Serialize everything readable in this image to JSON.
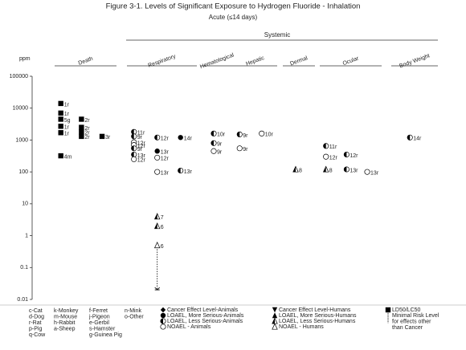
{
  "chart_data": {
    "type": "lse",
    "title": "Figure 3-1.  Levels of Significant Exposure to Hydrogen Fluoride - Inhalation",
    "subtitle": "Acute (≤14 days)",
    "group_label": "Systemic",
    "y_label": "ppm",
    "log_scale": true,
    "ylim": [
      0.01,
      100000
    ],
    "yticks": [
      100000,
      10000,
      1000,
      100,
      10,
      1,
      0.1,
      0.01
    ],
    "categories": [
      {
        "name": "Death",
        "columns": [
          [
            {
              "value": 14000,
              "label": "1r",
              "shape": "square"
            },
            {
              "value": 7000,
              "label": "1r",
              "shape": "square"
            },
            {
              "value": 4500,
              "label": "5g",
              "shape": "square"
            },
            {
              "value": 2700,
              "label": "1r",
              "shape": "square"
            },
            {
              "value": 1700,
              "label": "1r",
              "shape": "square"
            },
            {
              "value": 320,
              "label": "4m",
              "shape": "square"
            }
          ],
          [
            {
              "value": 4500,
              "label": "2r",
              "shape": "square"
            },
            {
              "value": 2500,
              "label": "2r",
              "shape": "square"
            },
            {
              "value": 1800,
              "label": "2r",
              "shape": "square"
            },
            {
              "value": 1300,
              "label": "2r",
              "shape": "square"
            }
          ],
          [
            {
              "value": 1300,
              "label": "3r",
              "shape": "square"
            }
          ]
        ]
      },
      {
        "name": "Respiratory",
        "columns": [
          [
            {
              "value": 1800,
              "label": "11r",
              "shape": "half-circle"
            },
            {
              "value": 1300,
              "label": "9r",
              "shape": "half-circle"
            },
            {
              "value": 850,
              "label": "12r",
              "shape": "open-circle"
            },
            {
              "value": 700,
              "label": "12r",
              "shape": "open-circle"
            },
            {
              "value": 550,
              "label": "9r",
              "shape": "half-circle"
            },
            {
              "value": 350,
              "label": "13r",
              "shape": "half-circle"
            },
            {
              "value": 250,
              "label": "12r",
              "shape": "open-circle"
            }
          ],
          [
            {
              "value": 1200,
              "label": "12r",
              "shape": "half-circle"
            },
            {
              "value": 450,
              "label": "13r",
              "shape": "filled-circle"
            },
            {
              "value": 280,
              "label": "12r",
              "shape": "open-circle"
            },
            {
              "value": 100,
              "label": "13r",
              "shape": "open-circle"
            },
            {
              "value": 4,
              "label": "7",
              "shape": "half-triangle"
            },
            {
              "value": 2,
              "label": "6",
              "shape": "half-triangle"
            },
            {
              "value": 0.5,
              "label": "6",
              "shape": "open-triangle"
            }
          ],
          [
            {
              "value": 1200,
              "label": "14r",
              "shape": "filled-circle"
            },
            {
              "value": 110,
              "label": "13r",
              "shape": "half-circle"
            }
          ]
        ],
        "mrl": 0.02
      },
      {
        "name": "Hematological",
        "columns": [
          [
            {
              "value": 800,
              "label": "9r",
              "shape": "half-circle"
            },
            {
              "value": 450,
              "label": "9r",
              "shape": "open-circle"
            },
            {
              "value": 1600,
              "label": "10r",
              "shape": "half-circle"
            }
          ]
        ]
      },
      {
        "name": "Hepatic",
        "columns": [
          [
            {
              "value": 1500,
              "label": "9r",
              "shape": "half-circle"
            },
            {
              "value": 550,
              "label": "9r",
              "shape": "open-circle"
            }
          ],
          [
            {
              "value": 1600,
              "label": "10r",
              "shape": "open-circle"
            }
          ]
        ]
      },
      {
        "name": "Dermal",
        "columns": [
          [
            {
              "value": 120,
              "label": "8",
              "shape": "half-triangle"
            }
          ]
        ]
      },
      {
        "name": "Ocular",
        "columns": [
          [
            {
              "value": 650,
              "label": "11r",
              "shape": "half-circle"
            },
            {
              "value": 300,
              "label": "12r",
              "shape": "open-circle"
            },
            {
              "value": 120,
              "label": "8",
              "shape": "half-triangle"
            }
          ],
          [
            {
              "value": 350,
              "label": "12r",
              "shape": "half-circle"
            },
            {
              "value": 120,
              "label": "13r",
              "shape": "half-circle"
            }
          ],
          [
            {
              "value": 100,
              "label": "13r",
              "shape": "open-circle"
            }
          ]
        ]
      },
      {
        "name": "Body Weight",
        "columns": [
          [
            {
              "value": 1200,
              "label": "14r",
              "shape": "half-circle"
            }
          ]
        ]
      }
    ],
    "species": [
      [
        "c-Cat",
        "d-Dog",
        "r-Rat",
        "p-Pig",
        "q-Cow"
      ],
      [
        "k-Monkey",
        "m-Mouse",
        "h-Rabbit",
        "a-Sheep"
      ],
      [
        "f-Ferret",
        "j-Pigeon",
        "e-Gerbil",
        "s-Hamster",
        "g-Guinea Pig"
      ],
      [
        "n-Mink",
        "o-Other"
      ]
    ],
    "legend": [
      [
        {
          "shape": "diamond",
          "label": "Cancer Effect Level-Animals"
        },
        {
          "shape": "filled-circle",
          "label": "LOAEL, More Serious-Animals"
        },
        {
          "shape": "half-circle",
          "label": "LOAEL, Less Serious-Animals"
        },
        {
          "shape": "open-circle",
          "label": "NOAEL - Animals"
        }
      ],
      [
        {
          "shape": "down-triangle",
          "label": "Cancer Effect Level-Humans"
        },
        {
          "shape": "filled-triangle",
          "label": "LOAEL, More Serious-Humans"
        },
        {
          "shape": "half-triangle",
          "label": "LOAEL, Less Serious-Humans"
        },
        {
          "shape": "open-triangle",
          "label": "NOAEL - Humans"
        }
      ],
      [
        {
          "shape": "square",
          "label": "LD50/LC50"
        },
        {
          "shape": "mrl",
          "label": "Minimal Risk Level for effects other than Cancer"
        }
      ]
    ]
  }
}
